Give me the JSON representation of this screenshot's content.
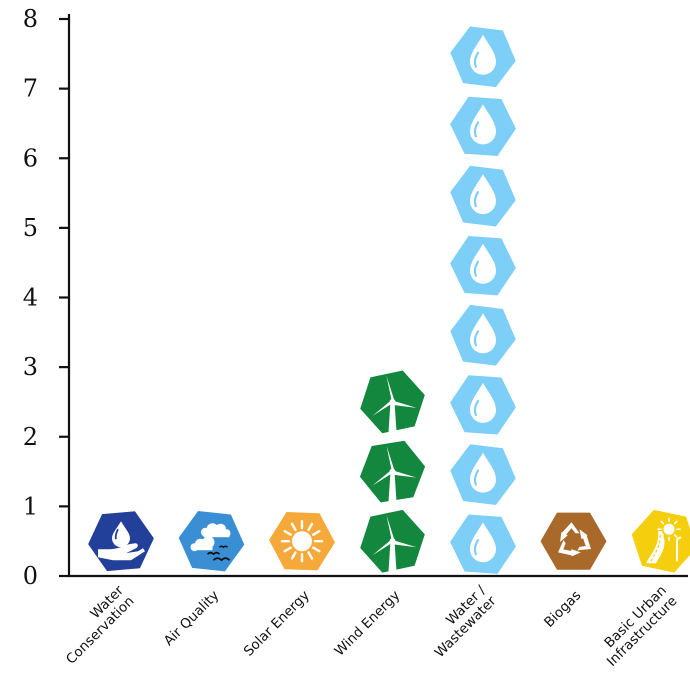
{
  "chart_data": {
    "type": "bar",
    "categories": [
      "Water Conservation",
      "Air Quality",
      "Solar Energy",
      "Wind Energy",
      "Water / Wastewater",
      "Biogas",
      "Basic Urban Infrastructure"
    ],
    "category_lines": [
      [
        "Water",
        "Conservation"
      ],
      [
        "Air Quality"
      ],
      [
        "Solar Energy"
      ],
      [
        "Wind Energy"
      ],
      [
        "Water /",
        "Wastewater"
      ],
      [
        "Biogas"
      ],
      [
        "Basic Urban",
        "Infrastructure"
      ]
    ],
    "values": [
      1,
      1,
      1,
      3,
      8,
      1,
      1
    ],
    "icons": [
      "water-conservation-icon",
      "air-quality-icon",
      "solar-energy-icon",
      "wind-energy-icon",
      "water-drop-icon",
      "biogas-recycle-icon",
      "basic-urban-infrastructure-icon"
    ],
    "colors": [
      "#22409a",
      "#3a8fd4",
      "#f6a93b",
      "#14873e",
      "#7dcff7",
      "#a8692b",
      "#f5ce0d"
    ],
    "yticks": [
      0,
      1,
      2,
      3,
      4,
      5,
      6,
      7,
      8
    ],
    "ylim": [
      0,
      8
    ],
    "title": "",
    "xlabel": "",
    "ylabel": "",
    "grid": false,
    "legend": "none"
  }
}
